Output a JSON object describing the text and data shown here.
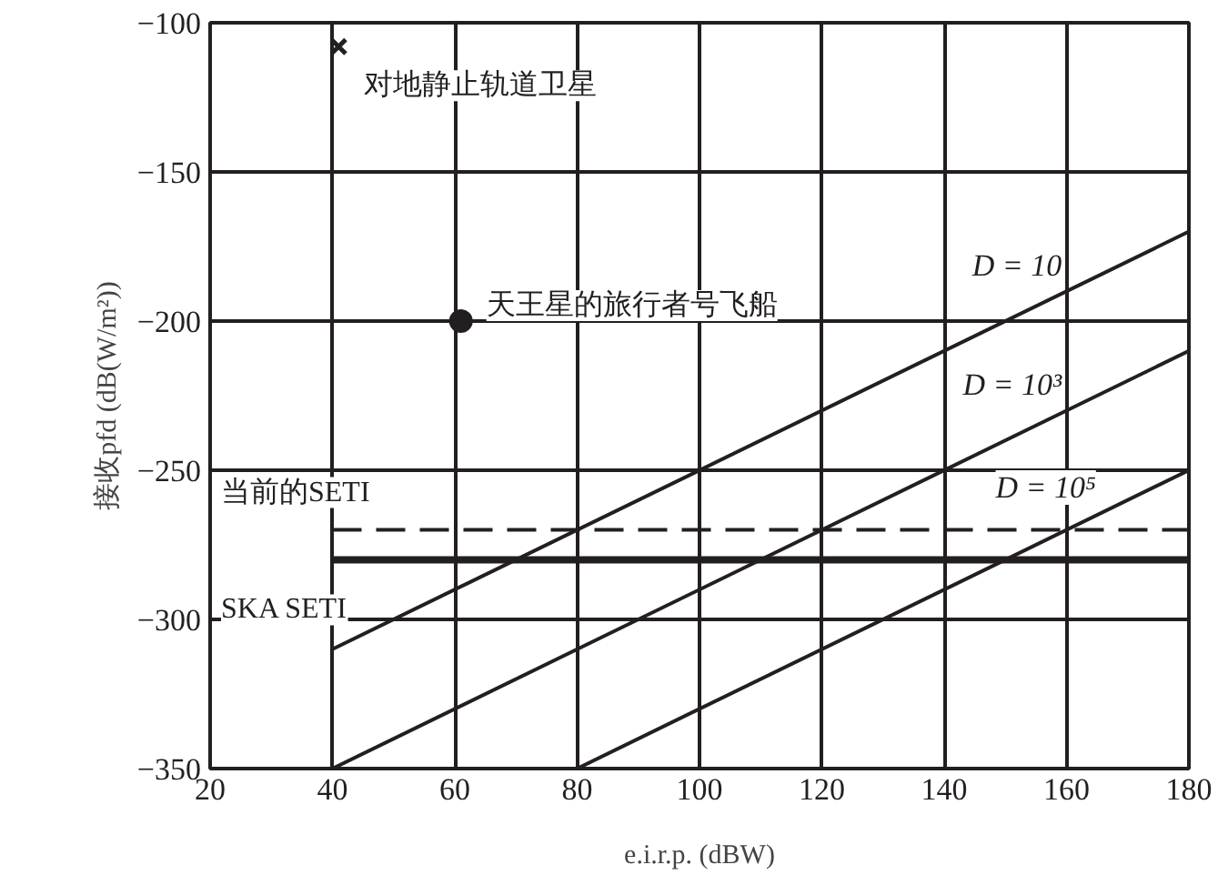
{
  "chart_data": {
    "type": "line",
    "xlabel": "e.i.r.p. (dBW)",
    "ylabel": "接收pfd (dB(W/m²))",
    "xlim": [
      20,
      180
    ],
    "ylim": [
      -350,
      -100
    ],
    "xticks": [
      20,
      40,
      60,
      80,
      100,
      120,
      140,
      160,
      180
    ],
    "yticks": [
      {
        "value": -100,
        "label": "−100"
      },
      {
        "value": -150,
        "label": "−150"
      },
      {
        "value": -200,
        "label": "−200"
      },
      {
        "value": -250,
        "label": "−250"
      },
      {
        "value": -300,
        "label": "−300"
      },
      {
        "value": -350,
        "label": "−350"
      }
    ],
    "grid": true,
    "line_style": "solid",
    "color": "#231f20",
    "series": [
      {
        "name": "D = 10",
        "x": [
          40,
          180
        ],
        "values": [
          -310,
          -170
        ],
        "color": "#231f20"
      },
      {
        "name": "D = 10³",
        "x": [
          40,
          180
        ],
        "values": [
          -350,
          -210
        ],
        "color": "#231f20"
      },
      {
        "name": "D = 10⁵",
        "x": [
          80,
          180
        ],
        "values": [
          -350,
          -250
        ],
        "color": "#231f20"
      },
      {
        "name": "对地静止轨道卫星",
        "type": "scatter",
        "marker": "cross",
        "x": [
          41
        ],
        "values": [
          -108
        ],
        "color": "#231f20"
      },
      {
        "name": "天王星的旅行者号飞船",
        "type": "scatter",
        "marker": "circle",
        "x": [
          61
        ],
        "values": [
          -200
        ],
        "color": "#231f20"
      }
    ],
    "ref_lines": [
      {
        "axis": "y",
        "value": -270,
        "label": "当前的SETI",
        "line_style": "dashed",
        "color": "#231f20"
      },
      {
        "axis": "y",
        "value": -280,
        "label": "SKA SETI",
        "line_style": "solid",
        "color": "#231f20"
      }
    ]
  }
}
